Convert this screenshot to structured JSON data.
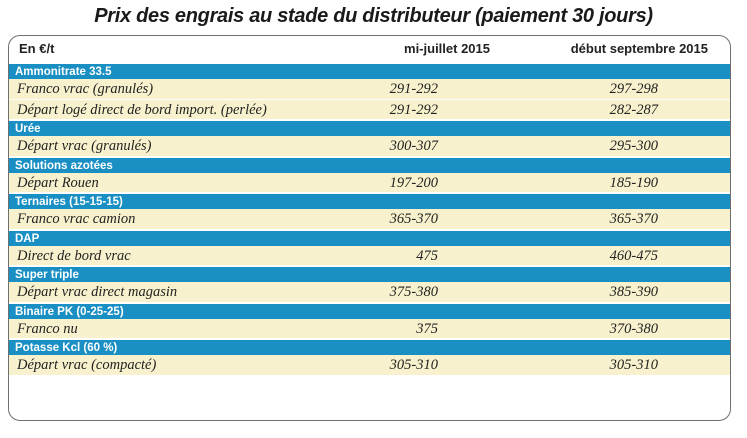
{
  "title": "Prix des engrais au stade du distributeur (paiement 30 jours)",
  "header": {
    "unit": "En €/t",
    "col1": "mi-juillet 2015",
    "col2": "début septembre 2015"
  },
  "sections": [
    {
      "name": "Ammonitrate 33.5",
      "rows": [
        {
          "label": "Franco vrac (granulés)",
          "v1": "291-292",
          "v2": "297-298"
        },
        {
          "label": "Départ logé direct de bord import. (perlée)",
          "v1": "291-292",
          "v2": "282-287"
        }
      ]
    },
    {
      "name": "Urée",
      "rows": [
        {
          "label": "Départ vrac (granulés)",
          "v1": "300-307",
          "v2": "295-300"
        }
      ]
    },
    {
      "name": "Solutions azotées",
      "rows": [
        {
          "label": "Départ Rouen",
          "v1": "197-200",
          "v2": "185-190"
        }
      ]
    },
    {
      "name": "Ternaires (15-15-15)",
      "rows": [
        {
          "label": "Franco vrac camion",
          "v1": "365-370",
          "v2": "365-370"
        }
      ]
    },
    {
      "name": "DAP",
      "rows": [
        {
          "label": "Direct de bord vrac",
          "v1": "475",
          "v2": "460-475"
        }
      ]
    },
    {
      "name": "Super triple",
      "rows": [
        {
          "label": "Départ vrac direct magasin",
          "v1": "375-380",
          "v2": "385-390"
        }
      ]
    },
    {
      "name": "Binaire PK (0-25-25)",
      "rows": [
        {
          "label": "Franco nu",
          "v1": "375",
          "v2": "370-380"
        }
      ]
    },
    {
      "name": "Potasse Kcl (60 %)",
      "rows": [
        {
          "label": "Départ vrac (compacté)",
          "v1": "305-310",
          "v2": "305-310"
        }
      ]
    }
  ]
}
